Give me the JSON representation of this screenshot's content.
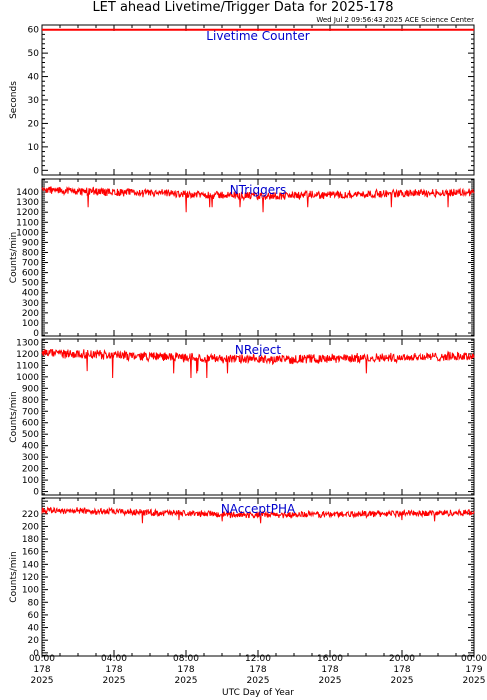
{
  "title": "LET ahead Livetime/Trigger Data for 2025-178",
  "timestamp": "Wed Jul  2 09:56:43 2025 ACE Science Center",
  "xlabel": "UTC Day of Year",
  "colors": {
    "data": "#ff0000",
    "series_label": "#0000cc",
    "axes": "#000000"
  },
  "x_ticks": [
    {
      "time": "00:00",
      "day": "178",
      "year": "2025"
    },
    {
      "time": "04:00",
      "day": "178",
      "year": "2025"
    },
    {
      "time": "08:00",
      "day": "178",
      "year": "2025"
    },
    {
      "time": "12:00",
      "day": "178",
      "year": "2025"
    },
    {
      "time": "16:00",
      "day": "178",
      "year": "2025"
    },
    {
      "time": "20:00",
      "day": "178",
      "year": "2025"
    },
    {
      "time": "00:00",
      "day": "179",
      "year": "2025"
    }
  ],
  "chart_data": [
    {
      "type": "line",
      "title": "Livetime Counter",
      "ylabel": "Seconds",
      "ylim": [
        -2,
        62
      ],
      "yticks": [
        0,
        10,
        20,
        30,
        40,
        50,
        60
      ],
      "xlim": [
        "2025-178T00:00",
        "2025-179T00:00"
      ],
      "series": [
        {
          "profile": {
            "mean": 60,
            "noise": 0,
            "spikes": []
          }
        }
      ]
    },
    {
      "type": "line",
      "title": "NTriggers",
      "ylabel": "Counts/min",
      "ylim": [
        -30,
        1530
      ],
      "yticks": [
        0,
        100,
        200,
        300,
        400,
        500,
        600,
        700,
        800,
        900,
        1000,
        1100,
        1200,
        1300,
        1400
      ],
      "xlim": [
        "2025-178T00:00",
        "2025-179T00:00"
      ],
      "series": [
        {
          "profile": {
            "start": 1420,
            "mid": 1360,
            "end": 1400,
            "noise": 45,
            "spikes": [
              1200,
              1250,
              1280
            ]
          }
        }
      ]
    },
    {
      "type": "line",
      "title": "NReject",
      "ylabel": "Counts/min",
      "ylim": [
        -30,
        1330
      ],
      "yticks": [
        0,
        100,
        200,
        300,
        400,
        500,
        600,
        700,
        800,
        900,
        1000,
        1100,
        1200,
        1300
      ],
      "xlim": [
        "2025-178T00:00",
        "2025-179T00:00"
      ],
      "series": [
        {
          "profile": {
            "start": 1210,
            "mid": 1150,
            "end": 1180,
            "noise": 45,
            "spikes": [
              990,
              1030,
              1050
            ]
          }
        }
      ]
    },
    {
      "type": "line",
      "title": "NAcceptPHA",
      "ylabel": "Counts/min",
      "ylim": [
        -5,
        245
      ],
      "yticks": [
        0,
        20,
        40,
        60,
        80,
        100,
        120,
        140,
        160,
        180,
        200,
        220
      ],
      "xlim": [
        "2025-178T00:00",
        "2025-179T00:00"
      ],
      "series": [
        {
          "profile": {
            "start": 226,
            "mid": 218,
            "end": 222,
            "noise": 6,
            "spikes": [
              205,
              208,
              210
            ]
          }
        }
      ]
    }
  ]
}
